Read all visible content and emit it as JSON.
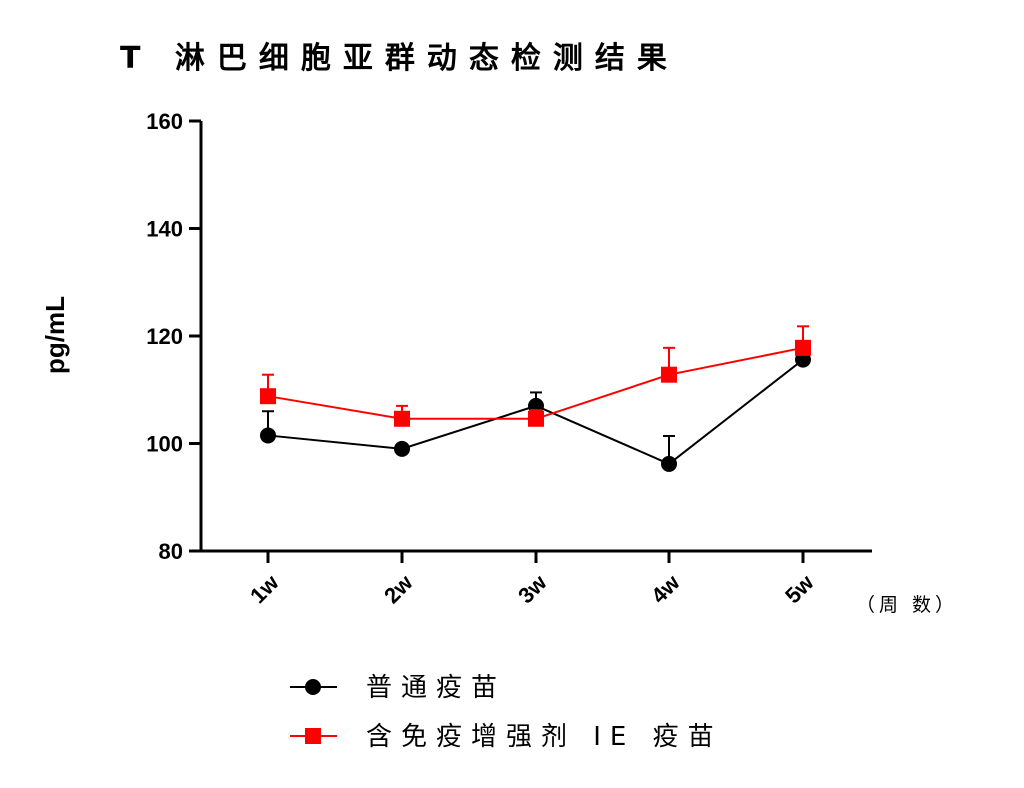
{
  "chart_data": {
    "type": "line",
    "title": "T 淋巴细胞亚群动态检测结果",
    "ylabel": "pg/mL",
    "x_unit_label": "（周 数）",
    "categories": [
      "1w",
      "2w",
      "3w",
      "4w",
      "5w"
    ],
    "ylim": [
      80,
      160
    ],
    "yticks": [
      80,
      100,
      120,
      140,
      160
    ],
    "grid": false,
    "legend_position": "bottom",
    "series": [
      {
        "name": "普通疫苗",
        "color": "#000000",
        "marker": "circle",
        "values": [
          101.5,
          99.0,
          107.0,
          96.2,
          115.6
        ],
        "error": [
          4.5,
          0.0,
          2.5,
          5.2,
          0.0
        ]
      },
      {
        "name": "含免疫增强剂 IE 疫苗",
        "color": "#ff0000",
        "marker": "square",
        "values": [
          108.8,
          104.6,
          104.6,
          112.8,
          117.8
        ],
        "error": [
          4.0,
          2.4,
          1.6,
          5.0,
          4.0
        ]
      }
    ]
  }
}
